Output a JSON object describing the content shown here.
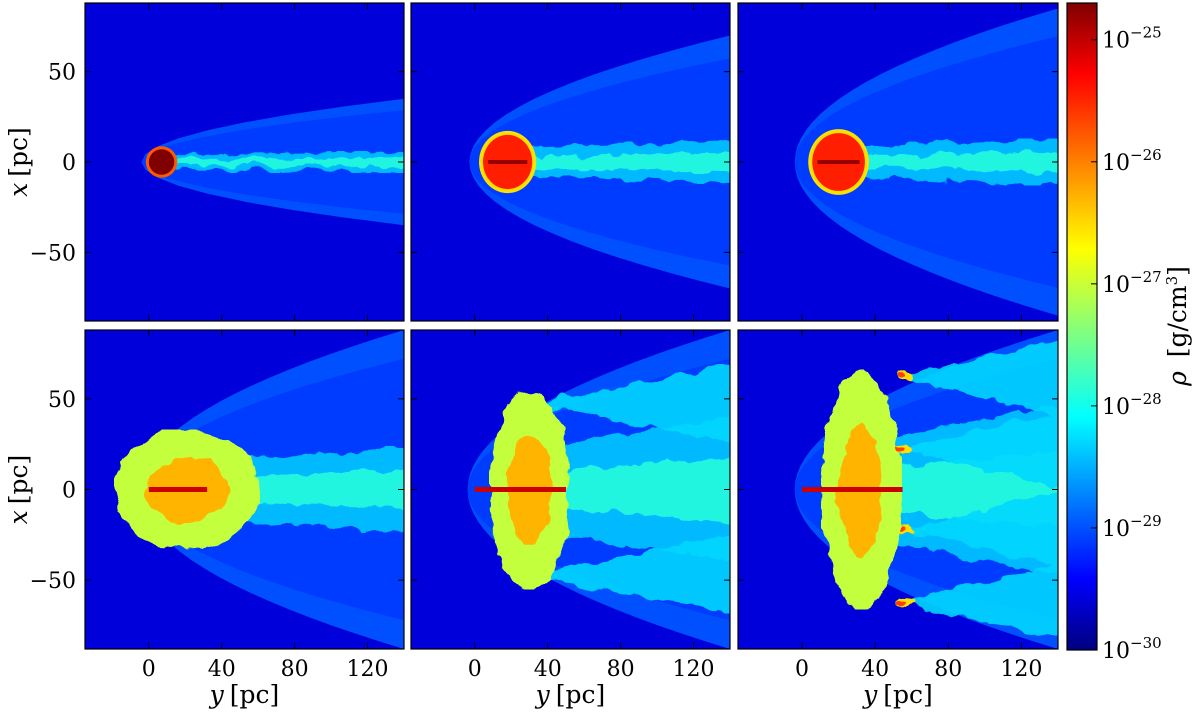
{
  "chart_data": {
    "type": "heatmap",
    "title": "",
    "grid": false,
    "layout": "2 rows x 3 columns of density slices sharing axes",
    "xlabel": {
      "var": "y",
      "unit": "[pc]"
    },
    "ylabel": {
      "var": "x",
      "unit": "[pc]"
    },
    "xlim": [
      -35,
      140
    ],
    "ylim": [
      -88,
      88
    ],
    "xticks": [
      0,
      40,
      80,
      120
    ],
    "xtick_labels": [
      "0",
      "40",
      "80",
      "120"
    ],
    "yticks": [
      50,
      0,
      -50
    ],
    "ytick_labels": [
      "50",
      "0",
      "−50"
    ],
    "colorbar": {
      "label_var": "ρ",
      "label_unit_prefix": "[g/cm",
      "label_unit_exp": "3",
      "label_unit_suffix": "]",
      "scale": "log",
      "range": [
        1e-30,
        2e-25
      ],
      "colormap": "jet",
      "ticks": [
        {
          "base": "10",
          "exp": "−25",
          "value": 1e-25
        },
        {
          "base": "10",
          "exp": "−26",
          "value": 1e-26
        },
        {
          "base": "10",
          "exp": "−27",
          "value": 1e-27
        },
        {
          "base": "10",
          "exp": "−28",
          "value": 1e-28
        },
        {
          "base": "10",
          "exp": "−29",
          "value": 1e-29
        },
        {
          "base": "10",
          "exp": "−30",
          "value": 1e-30
        }
      ]
    },
    "background_density": 3e-30,
    "panels": [
      {
        "row": 0,
        "col": 0,
        "bow_shock_apex_y": -4,
        "bow_shock_halfwidth_at_140": 35,
        "cloud_center": [
          7,
          0
        ],
        "cloud_radius": 7,
        "cloud_density": 2e-25,
        "stage": "compact cloud with thin tail"
      },
      {
        "row": 0,
        "col": 1,
        "bow_shock_apex_y": -3,
        "bow_shock_halfwidth_at_140": 70,
        "cloud_center": [
          18,
          0
        ],
        "cloud_radius": 15,
        "cloud_density": 3e-26,
        "stage": "flattened cloud, turbulent tail"
      },
      {
        "row": 0,
        "col": 2,
        "bow_shock_apex_y": -4,
        "bow_shock_halfwidth_at_140": 85,
        "cloud_center": [
          20,
          0
        ],
        "cloud_radius": 16,
        "cloud_density": 3e-26,
        "stage": "fragmenting cloud"
      },
      {
        "row": 1,
        "col": 0,
        "bow_shock_apex_y": -5,
        "bow_shock_halfwidth_at_140": 88,
        "cloud_center": [
          22,
          0
        ],
        "cloud_radius": 30,
        "cloud_density": 2e-26,
        "stage": "fingered cloud, broad turbulent wake"
      },
      {
        "row": 1,
        "col": 1,
        "bow_shock_apex_y": -4,
        "bow_shock_halfwidth_at_140": 88,
        "cloud_center": [
          40,
          0
        ],
        "cloud_radius": 50,
        "cloud_density": 1e-26,
        "stage": "three-lobed turbulent structure"
      },
      {
        "row": 1,
        "col": 2,
        "bow_shock_apex_y": -4,
        "bow_shock_halfwidth_at_140": 88,
        "cloud_center": [
          45,
          0
        ],
        "cloud_radius": 60,
        "cloud_density": 1e-26,
        "stage": "five-lobed turbulent structure"
      }
    ]
  }
}
